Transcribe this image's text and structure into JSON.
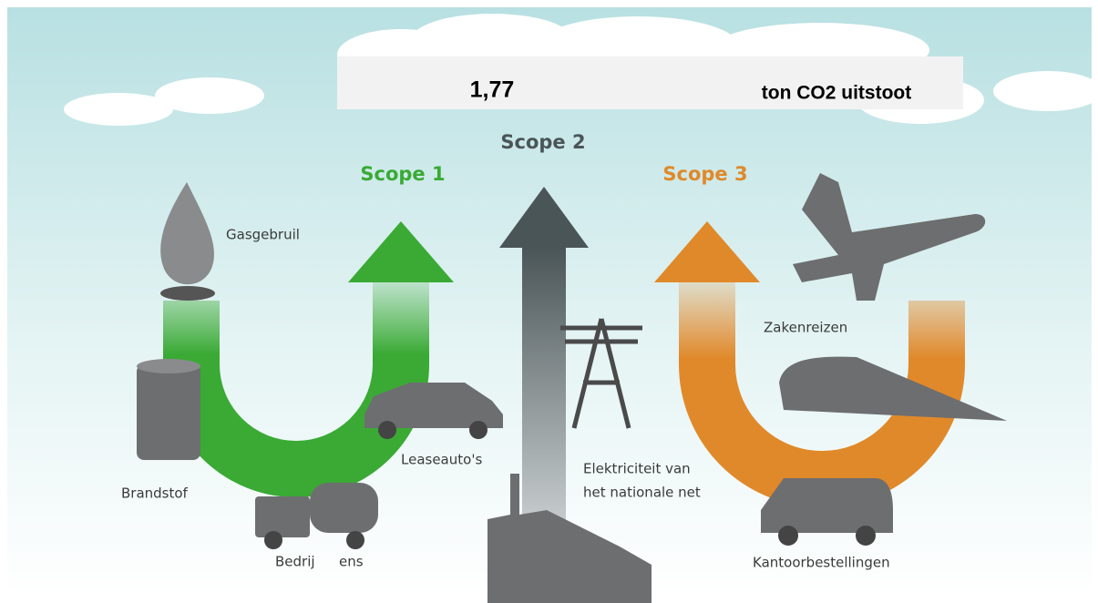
{
  "banner": {
    "value": "1,77",
    "unit": "ton CO2 uitstoot"
  },
  "scopes": [
    {
      "label": "Scope 1"
    },
    {
      "label": "Scope 2"
    },
    {
      "label": "Scope 3"
    }
  ],
  "items": {
    "gas": "Gasgebruil",
    "fuel": "Brandstof",
    "assets": [
      "Bedrij",
      "ens"
    ],
    "lease": "Leaseauto's",
    "electricity": [
      "Elektriciteit van",
      "het nationale net"
    ],
    "travel": "Zakenreizen",
    "office": "Kantoorbestellingen"
  }
}
